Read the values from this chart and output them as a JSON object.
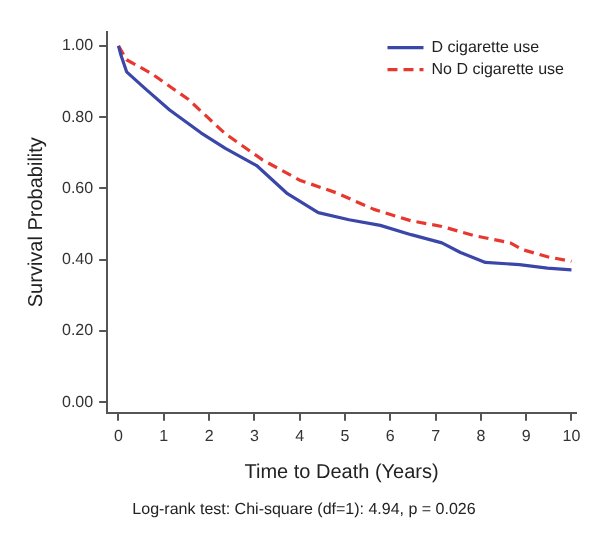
{
  "chart_data": {
    "type": "line",
    "xlabel": "Time to Death (Years)",
    "ylabel": "Survival Probability",
    "annotations": [
      "Log-rank test: Chi-square (df=1): 4.94, p = 0.026"
    ],
    "xlim": [
      -0.25,
      10.1
    ],
    "ylim": [
      -0.03,
      1.04
    ],
    "xticks": [
      0,
      1,
      2,
      3,
      4,
      5,
      6,
      7,
      8,
      9,
      10
    ],
    "yticks": [
      {
        "value": 0,
        "label": "0.00"
      },
      {
        "value": 0.2,
        "label": "0.20"
      },
      {
        "value": 0.4,
        "label": "0.40"
      },
      {
        "value": 0.6,
        "label": "0.60"
      },
      {
        "value": 0.8,
        "label": "0.80"
      },
      {
        "value": 1,
        "label": "1.00"
      }
    ],
    "grid": false,
    "legend": "top right",
    "marker": "none",
    "series": [
      {
        "name": "D cigarette use",
        "color": "#3a46a8",
        "line_style": "solid",
        "x": [
          0,
          0.05,
          0.18,
          0.59,
          1.13,
          1.82,
          2.36,
          3.05,
          3.73,
          4.41,
          5.09,
          5.78,
          6.46,
          7.14,
          7.55,
          8.1,
          8.85,
          9.47,
          10
        ],
        "values": [
          1.0,
          0.976,
          0.927,
          0.88,
          0.82,
          0.756,
          0.712,
          0.664,
          0.585,
          0.532,
          0.512,
          0.496,
          0.47,
          0.447,
          0.42,
          0.392,
          0.386,
          0.376,
          0.371
        ]
      },
      {
        "name": "No D cigarette use",
        "color": "#e8372f",
        "line_style": "dashed",
        "x": [
          0,
          0.18,
          0.72,
          1.54,
          2.36,
          3.18,
          4.0,
          4.82,
          5.64,
          6.46,
          7.14,
          7.83,
          8.65,
          8.92,
          9.47,
          10
        ],
        "values": [
          1.0,
          0.961,
          0.923,
          0.85,
          0.753,
          0.68,
          0.623,
          0.587,
          0.541,
          0.509,
          0.493,
          0.468,
          0.447,
          0.428,
          0.408,
          0.395
        ]
      }
    ]
  }
}
